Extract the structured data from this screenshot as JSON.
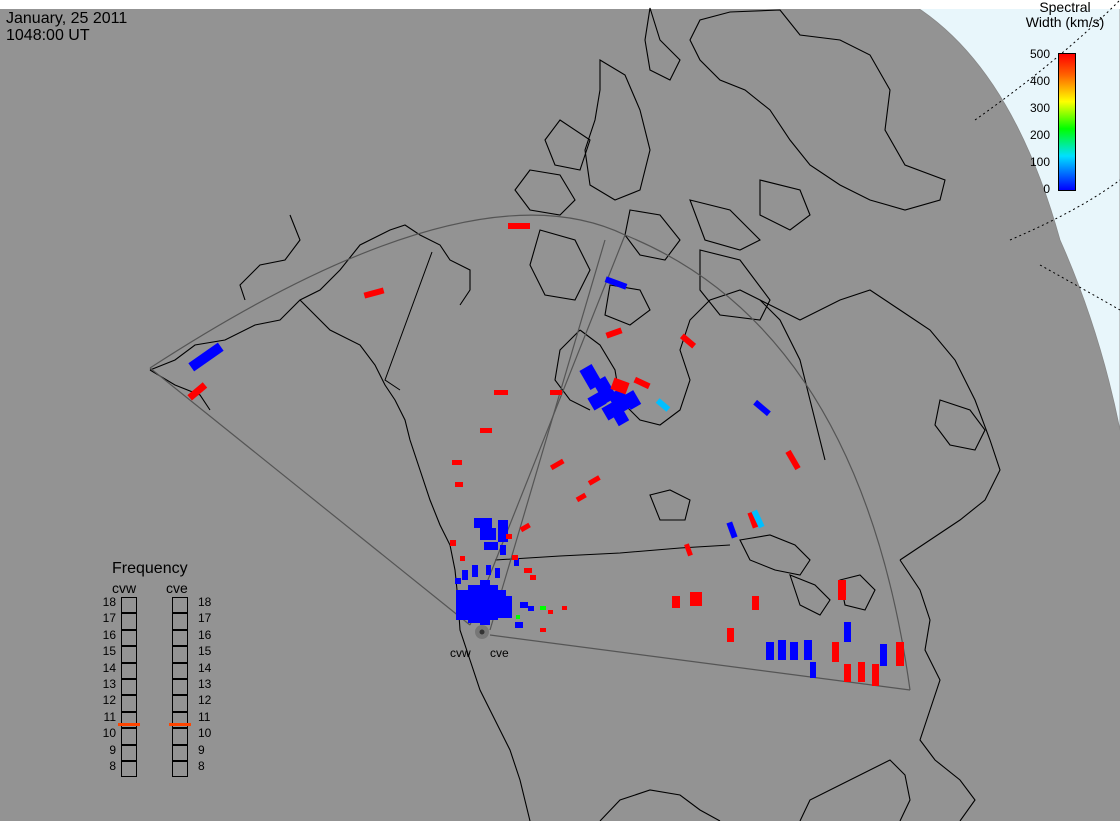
{
  "header": {
    "date": "January, 25 2011",
    "time": "1048:00 UT"
  },
  "colorbar": {
    "title_line1": "Spectral",
    "title_line2": "Width (km/s)",
    "ticks": [
      "500",
      "400",
      "300",
      "200",
      "100",
      "0"
    ],
    "colors": [
      "#ff0000",
      "#ff8c00",
      "#ffff00",
      "#00ff00",
      "#00ffff",
      "#0000ff"
    ]
  },
  "frequency_panel": {
    "title": "Frequency",
    "left_label": "cvw",
    "right_label": "cve",
    "scale": [
      "18",
      "17",
      "16",
      "15",
      "14",
      "13",
      "12",
      "11",
      "10",
      "9",
      "8"
    ],
    "cvw_mhz": 10.7,
    "cve_mhz": 10.7,
    "marker_color": "#ff4500"
  },
  "radars": {
    "west_label": "cvw",
    "east_label": "cve"
  },
  "colors": {
    "ocean": "#939393",
    "land": "#939393",
    "day_region": "#e8f6fb",
    "coast": "#000000",
    "fov_outline": "#555555"
  }
}
